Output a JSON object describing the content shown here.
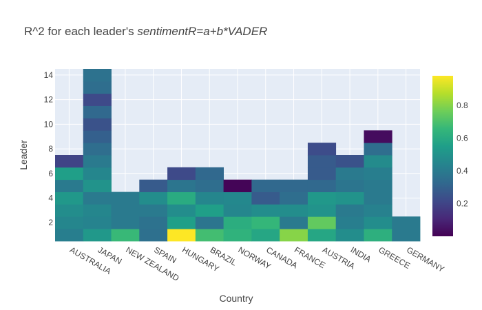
{
  "chart_data": {
    "type": "heatmap",
    "title_plain": "R^2 for each leader's ",
    "title_italic": "sentimentR=a+b*VADER",
    "xlabel": "Country",
    "ylabel": "Leader",
    "categories": [
      "AUSTRALIA",
      "JAPAN",
      "NEW ZEALAND",
      "SPAIN",
      "HUNGARY",
      "BRAZIL",
      "NORWAY",
      "CANADA",
      "FRANCE",
      "AUSTRIA",
      "INDIA",
      "GREECE",
      "GERMANY"
    ],
    "y_range": [
      0.5,
      14.5
    ],
    "y_ticks": [
      2,
      4,
      6,
      8,
      10,
      12,
      14
    ],
    "colorscale": "Viridis",
    "colorbar_range": [
      0.0,
      0.98
    ],
    "colorbar_ticks": [
      0.2,
      0.4,
      0.6,
      0.8
    ],
    "z": [
      [
        0.42,
        0.45,
        0.48,
        0.52,
        0.4,
        0.55,
        0.2
      ],
      [
        0.52,
        0.44,
        0.45,
        0.4,
        0.5,
        0.45,
        0.4,
        0.35,
        0.3,
        0.25,
        0.33,
        0.22,
        0.35,
        0.37
      ],
      [
        0.66,
        0.4,
        0.4,
        0.4
      ],
      [
        0.36,
        0.37,
        0.4,
        0.48,
        0.28
      ],
      [
        0.98,
        0.55,
        0.48,
        0.6,
        0.38,
        0.22
      ],
      [
        0.68,
        0.38,
        0.55,
        0.45,
        0.35,
        0.33
      ],
      [
        0.63,
        0.61,
        0.45,
        0.46,
        0.01
      ],
      [
        0.58,
        0.65,
        0.48,
        0.28,
        0.33
      ],
      [
        0.8,
        0.4,
        0.48,
        0.35,
        0.33
      ],
      [
        0.58,
        0.74,
        0.5,
        0.52,
        0.33,
        0.28,
        0.28,
        0.23
      ],
      [
        0.48,
        0.42,
        0.4,
        0.5,
        0.38,
        0.4,
        0.25
      ],
      [
        0.62,
        0.48,
        0.43,
        0.4,
        0.4,
        0.42,
        0.47,
        0.35,
        0.03
      ],
      [
        0.4,
        0.4
      ]
    ]
  }
}
